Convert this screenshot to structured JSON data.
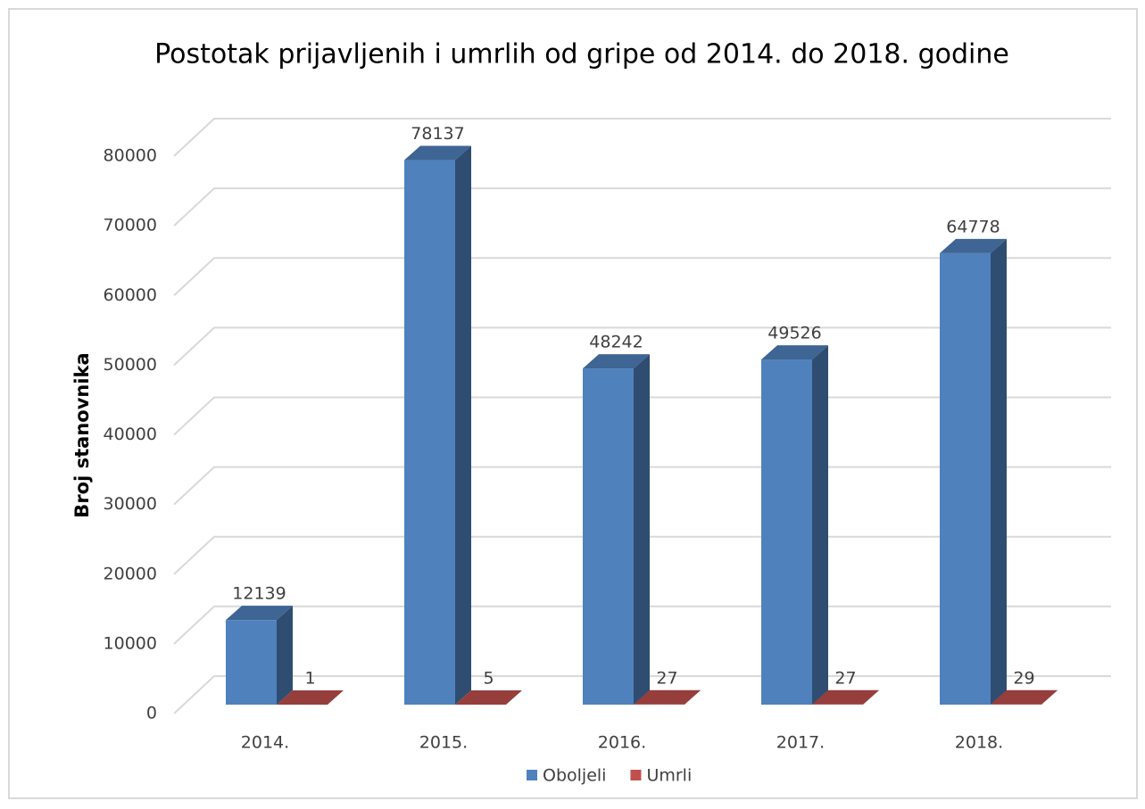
{
  "chart_data": {
    "type": "bar3d",
    "title": "Postotak prijavljenih i umrlih od gripe od 2014. do 2018. godine",
    "y_label": "Broj stanovnika",
    "categories": [
      "2014.",
      "2015.",
      "2016.",
      "2017.",
      "2018."
    ],
    "series": [
      {
        "name": "Oboljeli",
        "color": "#4f81bd",
        "values": [
          12139,
          78137,
          48242,
          49526,
          64778
        ]
      },
      {
        "name": "Umrli",
        "color": "#c0504d",
        "values": [
          1,
          5,
          27,
          27,
          29
        ]
      }
    ],
    "ylim": [
      0,
      80000
    ],
    "yticks": [
      0,
      10000,
      20000,
      30000,
      40000,
      50000,
      60000,
      70000,
      80000
    ],
    "grid": true,
    "legend": "bottom"
  }
}
